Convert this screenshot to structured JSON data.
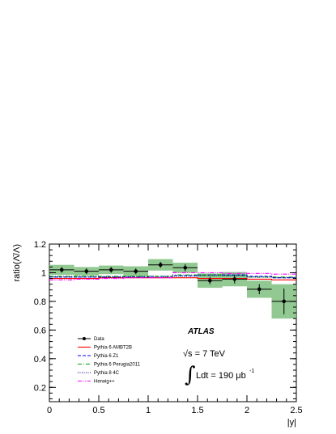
{
  "chart_data": {
    "type": "scatter",
    "xlabel": "|y|",
    "ylabel": "ratio(Λ̄/Λ)",
    "xlim": [
      0,
      2.5
    ],
    "ylim": [
      0.1,
      1.2
    ],
    "x_ticks": [
      "0",
      "0.5",
      "1",
      "1.5",
      "2",
      "2.5"
    ],
    "y_ticks": [
      "0.2",
      "0.4",
      "0.6",
      "0.8",
      "1",
      "1.2"
    ],
    "bin_edges": [
      0,
      0.25,
      0.5,
      0.75,
      1.0,
      1.25,
      1.5,
      1.75,
      2.0,
      2.25,
      2.5
    ],
    "data": {
      "name": "Data",
      "color": "#000000",
      "values": [
        1.02,
        1.01,
        1.02,
        1.01,
        1.055,
        1.035,
        0.945,
        0.955,
        0.885,
        0.8
      ],
      "stat_err": [
        0.02,
        0.02,
        0.02,
        0.02,
        0.02,
        0.025,
        0.025,
        0.03,
        0.035,
        0.09
      ],
      "syst_err": [
        0.035,
        0.03,
        0.03,
        0.035,
        0.04,
        0.035,
        0.05,
        0.05,
        0.06,
        0.12
      ],
      "band_color": "#7fbf7f"
    },
    "series": [
      {
        "name": "Pythia 6 AMBT2B",
        "color": "#ff0000",
        "style": "solid",
        "values": [
          0.96,
          0.96,
          0.965,
          0.965,
          0.965,
          0.965,
          0.96,
          0.96,
          0.955,
          0.95
        ]
      },
      {
        "name": "Pythia 6 Z1",
        "color": "#0000ff",
        "style": "dashed",
        "values": [
          0.97,
          0.97,
          0.97,
          0.97,
          0.975,
          0.98,
          0.985,
          0.985,
          0.975,
          0.965
        ]
      },
      {
        "name": "Pythia 6 Perugia2011",
        "color": "#00a000",
        "style": "dashdot",
        "values": [
          0.975,
          0.975,
          0.975,
          0.975,
          0.975,
          0.985,
          0.985,
          0.98,
          0.97,
          0.97
        ]
      },
      {
        "name": "Pythia 8 4C",
        "color": "#000080",
        "style": "dotted",
        "values": [
          0.97,
          0.97,
          0.97,
          0.97,
          0.97,
          0.975,
          0.98,
          0.98,
          0.97,
          0.965
        ]
      },
      {
        "name": "Herwig++",
        "color": "#ff00ff",
        "style": "dashdotdot",
        "values": [
          0.95,
          0.955,
          0.96,
          0.965,
          0.965,
          1.0,
          1.0,
          0.995,
          0.995,
          0.99
        ]
      }
    ],
    "legend_placement": "bottom-left",
    "annotations": {
      "experiment": "ATLAS",
      "energy": "√s = 7 TeV",
      "luminosity": "Ldt = 190 μb",
      "luminosity_sup": "-1"
    }
  }
}
